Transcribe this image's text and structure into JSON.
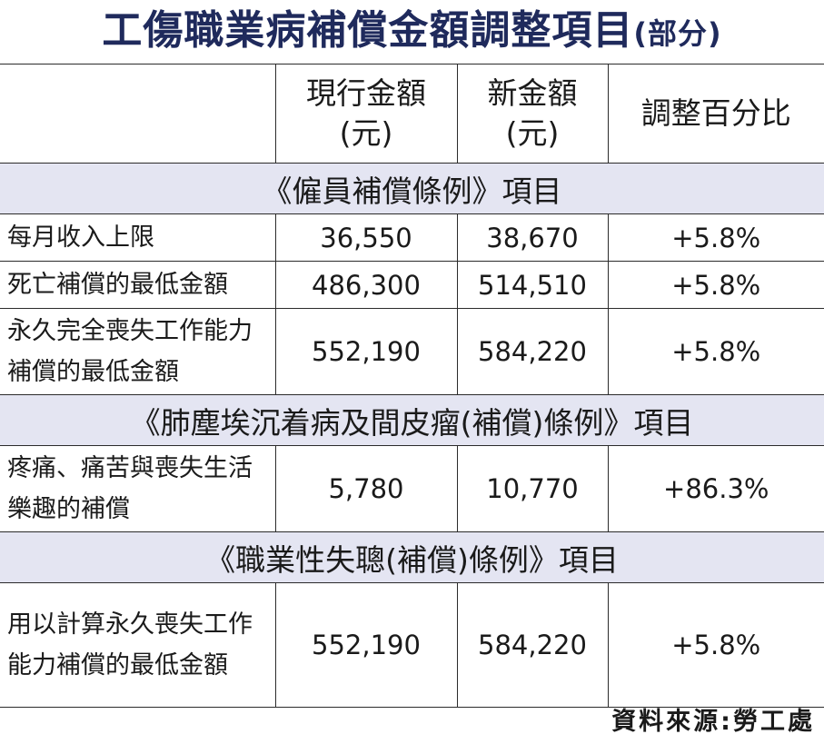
{
  "title": "工傷職業病補償金額調整項目",
  "title_suffix": "(部分)",
  "header": {
    "current_line1": "現行金額",
    "current_line2": "(元)",
    "new_line1": "新金額",
    "new_line2": "(元)",
    "pct": "調整百分比"
  },
  "sections": [
    {
      "title": "《僱員補償條例》項目",
      "rows": [
        {
          "label": "每月收入上限",
          "current": "36,550",
          "new": "38,670",
          "pct": "+5.8%"
        },
        {
          "label": "死亡補償的最低金額",
          "current": "486,300",
          "new": "514,510",
          "pct": "+5.8%"
        },
        {
          "label": "永久完全喪失工作能力補償的最低金額",
          "current": "552,190",
          "new": "584,220",
          "pct": "+5.8%"
        }
      ]
    },
    {
      "title": "《肺塵埃沉着病及間皮瘤(補償)條例》項目",
      "rows": [
        {
          "label": "疼痛、痛苦與喪失生活樂趣的補償",
          "current": "5,780",
          "new": "10,770",
          "pct": "+86.3%"
        }
      ]
    },
    {
      "title": "《職業性失聰(補償)條例》項目",
      "rows": [
        {
          "label": "用以計算永久喪失工作能力補償的最低金額",
          "current": "552,190",
          "new": "584,220",
          "pct": "+5.8%"
        }
      ]
    }
  ],
  "source": "資料來源:勞工處",
  "colors": {
    "title": "#1f2a5c",
    "section_band": "#e4e5f2",
    "rule": "#2b2b2b"
  }
}
